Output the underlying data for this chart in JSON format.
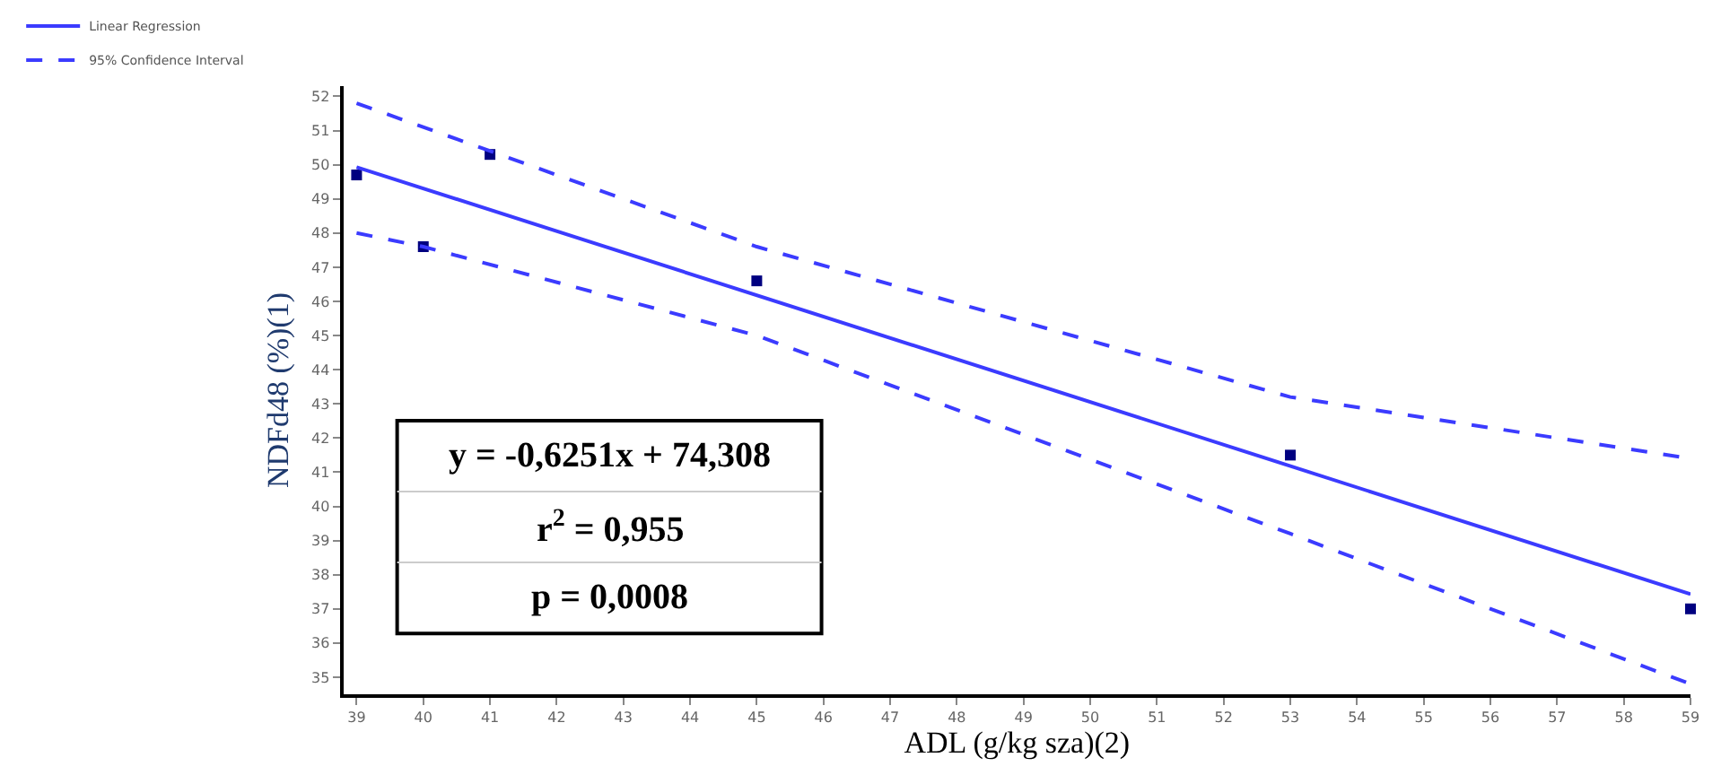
{
  "chart_data": {
    "type": "scatter",
    "xlabel": "ADL (g/kg sza)(2)",
    "ylabel": "NDFd48 (%)(1)",
    "xlim": [
      38.8,
      59
    ],
    "xticks": [
      39,
      40,
      41,
      42,
      43,
      44,
      45,
      46,
      47,
      48,
      49,
      50,
      51,
      52,
      53,
      54,
      55,
      56,
      57,
      58,
      59
    ],
    "ylim": [
      34.5,
      52.3
    ],
    "yticks": [
      35,
      36,
      37,
      38,
      39,
      40,
      41,
      42,
      43,
      44,
      45,
      46,
      47,
      48,
      49,
      50,
      51,
      52
    ],
    "legend": "top left",
    "series": [
      {
        "marker": "square",
        "color": "#000080",
        "x": [
          39,
          40,
          41,
          45,
          53,
          59
        ],
        "values": [
          49.7,
          47.6,
          50.3,
          46.6,
          41.5,
          37.0
        ]
      },
      {
        "type": "line",
        "name": "Linear Regression",
        "color": "#3b3bff",
        "line_style": "solid",
        "x": [
          39,
          59
        ],
        "values": [
          49.93,
          37.43
        ]
      },
      {
        "type": "line",
        "name": "95% Confidence Interval",
        "color": "#3b3bff",
        "line_style": "dashed",
        "x": [
          39,
          45,
          53,
          59
        ],
        "values": [
          51.8,
          47.6,
          43.2,
          41.4
        ]
      },
      {
        "type": "line",
        "color": "#3b3bff",
        "line_style": "dashed",
        "x": [
          39,
          40,
          45,
          53,
          59
        ],
        "values": [
          48.0,
          47.6,
          45.0,
          39.2,
          34.8
        ]
      }
    ],
    "annotations": [
      "y = -0,6251x + 74,308",
      "r$^{2}$ = 0,955",
      "p = 0,0008"
    ]
  }
}
